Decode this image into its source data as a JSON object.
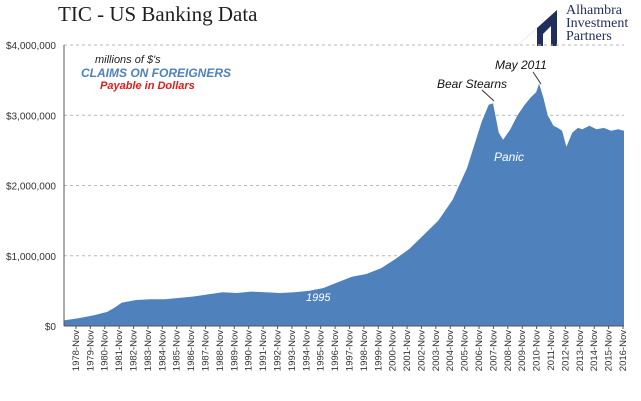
{
  "header": {
    "title": "TIC - US Banking Data",
    "logo_text": "Alhambra\nInvestment\nPartners"
  },
  "annotations": {
    "units": "millions of $'s",
    "series_label": "CLAIMS  ON FOREIGNERS",
    "payable": "Payable  in Dollars",
    "bear_stearns": "Bear Stearns",
    "may_2011": "May 2011",
    "panic": "Panic",
    "y1995": "1995"
  },
  "colors": {
    "area": "#4f81bd",
    "grid": "#b7b7b7",
    "claims_text": "#4f81bd",
    "payable_text": "#e01b1b",
    "logo": "#1f2e5c"
  },
  "chart_data": {
    "type": "area",
    "title": "TIC - US Banking Data",
    "xlabel": "",
    "ylabel": "",
    "ylim": [
      0,
      4000000
    ],
    "y_ticks": [
      "$0",
      "$1,000,000",
      "$2,000,000",
      "$3,000,000",
      "$4,000,000"
    ],
    "y_tick_values": [
      0,
      1000000,
      2000000,
      3000000,
      4000000
    ],
    "grid": "horizontal dashed",
    "x_tick_labels": [
      "1978-Nov",
      "1979-Nov",
      "1980-Nov",
      "1981-Nov",
      "1982-Nov",
      "1983-Nov",
      "1984-Nov",
      "1985-Nov",
      "1986-Nov",
      "1987-Nov",
      "1988-Nov",
      "1989-Nov",
      "1990-Nov",
      "1991-Nov",
      "1992-Nov",
      "1993-Nov",
      "1994-Nov",
      "1995-Nov",
      "1996-Nov",
      "1997-Nov",
      "1998-Nov",
      "1999-Nov",
      "2000-Nov",
      "2001-Nov",
      "2002-Nov",
      "2003-Nov",
      "2004-Nov",
      "2005-Nov",
      "2006-Nov",
      "2007-Nov",
      "2008-Nov",
      "2009-Nov",
      "2010-Nov",
      "2011-Nov",
      "2012-Nov",
      "2013-Nov",
      "2014-Nov",
      "2015-Nov",
      "2016-Nov"
    ],
    "x": [
      1978.0,
      1979.0,
      1980.0,
      1981.0,
      1981.5,
      1982.0,
      1983.0,
      1984.0,
      1985.0,
      1986.0,
      1987.0,
      1988.0,
      1989.0,
      1990.0,
      1991.0,
      1992.0,
      1993.0,
      1994.0,
      1995.0,
      1996.0,
      1997.0,
      1998.0,
      1999.0,
      2000.0,
      2001.0,
      2002.0,
      2003.0,
      2004.0,
      2005.0,
      2006.0,
      2007.0,
      2007.5,
      2007.8,
      2008.2,
      2008.5,
      2009.0,
      2009.5,
      2010.0,
      2010.4,
      2010.8,
      2011.0,
      2011.3,
      2011.6,
      2012.0,
      2012.3,
      2012.6,
      2012.9,
      2013.3,
      2013.7,
      2014.0,
      2014.5,
      2015.0,
      2015.5,
      2016.0,
      2016.5,
      2016.9
    ],
    "series": [
      {
        "values": [
          80000,
          110000,
          150000,
          200000,
          260000,
          330000,
          370000,
          380000,
          380000,
          400000,
          420000,
          450000,
          480000,
          470000,
          490000,
          480000,
          470000,
          480000,
          500000,
          540000,
          620000,
          700000,
          740000,
          820000,
          950000,
          1100000,
          1300000,
          1500000,
          1800000,
          2250000,
          2900000,
          3150000,
          3170000,
          2750000,
          2650000,
          2800000,
          3000000,
          3150000,
          3250000,
          3330000,
          3450000,
          3250000,
          3000000,
          2850000,
          2820000,
          2780000,
          2550000,
          2750000,
          2820000,
          2800000,
          2850000,
          2800000,
          2820000,
          2780000,
          2800000,
          2780000
        ]
      }
    ]
  }
}
